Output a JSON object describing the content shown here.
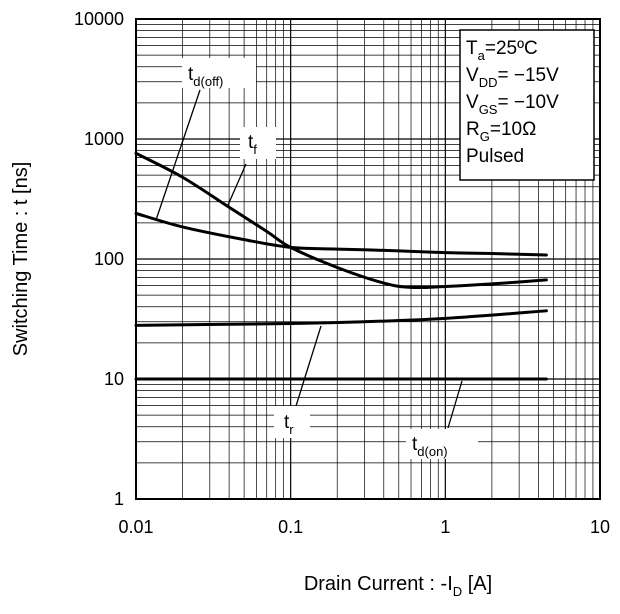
{
  "chart_data": {
    "type": "line",
    "xscale": "log",
    "yscale": "log",
    "xlim": [
      0.01,
      10
    ],
    "ylim": [
      1,
      10000
    ],
    "grid": true,
    "x_ticks": [
      "0.01",
      "0.1",
      "1",
      "10"
    ],
    "y_ticks": [
      "1",
      "10",
      "100",
      "1000",
      "10000"
    ],
    "ylabel": "Switching Time : t [ns]",
    "xlabel_parts": {
      "main": "Drain Current : -I",
      "sub": "D",
      "unit": " [A]"
    },
    "conditions": [
      {
        "main": "T",
        "sub": "a",
        "rest": "=25ºC"
      },
      {
        "main": "V",
        "sub": "DD",
        "rest": "= −15V"
      },
      {
        "main": "V",
        "sub": "GS",
        "rest": "= −10V"
      },
      {
        "main": "R",
        "sub": "G",
        "rest": "=10Ω"
      },
      {
        "main": "Pulsed",
        "sub": "",
        "rest": ""
      }
    ],
    "series": [
      {
        "name_main": "t",
        "name_sub": "d(off)",
        "x": [
          0.01,
          0.02,
          0.05,
          0.1,
          0.2,
          0.5,
          1,
          2,
          4.5
        ],
        "y": [
          240,
          185,
          145,
          125,
          121,
          117,
          113,
          111,
          108
        ]
      },
      {
        "name_main": "t",
        "name_sub": "f",
        "x": [
          0.01,
          0.02,
          0.04,
          0.07,
          0.1,
          0.2,
          0.4,
          0.6,
          1,
          2,
          4.5
        ],
        "y": [
          760,
          480,
          270,
          170,
          125,
          85,
          63,
          58,
          59,
          62,
          67
        ]
      },
      {
        "name_main": "t",
        "name_sub": "r",
        "x": [
          0.01,
          0.1,
          0.3,
          1,
          4.5
        ],
        "y": [
          28,
          29,
          30,
          32,
          37
        ]
      },
      {
        "name_main": "t",
        "name_sub": "d(on)",
        "x": [
          0.01,
          4.5
        ],
        "y": [
          10,
          10
        ]
      }
    ]
  }
}
